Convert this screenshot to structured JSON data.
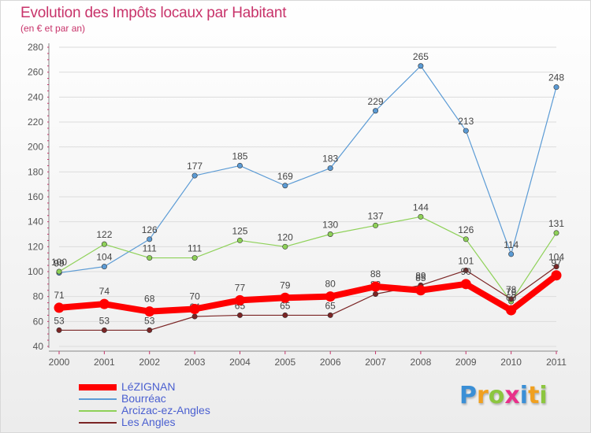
{
  "chart_data": {
    "type": "line",
    "title": "Evolution des Impôts locaux par Habitant",
    "subtitle": "(en € et par an)",
    "xlabel": "",
    "ylabel": "",
    "categories": [
      "2000",
      "2001",
      "2002",
      "2003",
      "2004",
      "2005",
      "2006",
      "2007",
      "2008",
      "2009",
      "2010",
      "2011"
    ],
    "ylim": [
      40,
      280
    ],
    "yticks": [
      40,
      60,
      80,
      100,
      120,
      140,
      160,
      180,
      200,
      220,
      240,
      260,
      280
    ],
    "legend_position": "bottom-left",
    "series": [
      {
        "name": "Bourréac",
        "color": "#5b9bd5",
        "values": [
          99,
          104,
          126,
          177,
          185,
          169,
          183,
          229,
          265,
          213,
          114,
          248
        ],
        "labels": [
          "99",
          "104",
          "126",
          "177",
          "185",
          "169",
          "183",
          "229",
          "265",
          "213",
          "114",
          "248"
        ]
      },
      {
        "name": "Arcizac-ez-Angles",
        "color": "#8ed158",
        "values": [
          100,
          122,
          111,
          111,
          125,
          120,
          130,
          137,
          144,
          126,
          76,
          131
        ],
        "labels": [
          "100",
          "122",
          "111",
          "111",
          "125",
          "120",
          "130",
          "137",
          "144",
          "126",
          "76",
          "131"
        ]
      },
      {
        "name": "Les Angles",
        "color": "#7b2525",
        "values": [
          53,
          53,
          53,
          64,
          65,
          65,
          65,
          82,
          89,
          101,
          78,
          104
        ],
        "labels": [
          "53",
          "53",
          "53",
          "64",
          "65",
          "65",
          "65",
          "82",
          "89",
          "101",
          "78",
          "104"
        ]
      },
      {
        "name": "LéZIGNAN",
        "color": "#ff0000",
        "values": [
          71,
          74,
          68,
          70,
          77,
          79,
          80,
          88,
          85,
          90,
          69,
          97
        ],
        "labels": [
          "71",
          "74",
          "68",
          "70",
          "77",
          "79",
          "80",
          "88",
          "85",
          "90",
          "69",
          "97"
        ]
      }
    ],
    "legend_order": [
      "LéZIGNAN",
      "Bourréac",
      "Arcizac-ez-Angles",
      "Les Angles"
    ]
  },
  "brand": {
    "letters": [
      "P",
      "r",
      "o",
      "x",
      "i",
      "t",
      "i"
    ],
    "colors": [
      "#3a8fd6",
      "#f0a020",
      "#8cc63f",
      "#e8308a",
      "#3a8fd6",
      "#f0a020",
      "#8cc63f"
    ]
  },
  "colors": {
    "title": "#c8336a",
    "axis": "#555555",
    "grid": "#dcdcdc",
    "label": "#444444"
  }
}
